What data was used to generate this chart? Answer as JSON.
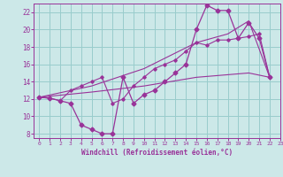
{
  "xlabel": "Windchill (Refroidissement éolien,°C)",
  "xlim": [
    -0.5,
    23
  ],
  "ylim": [
    7.5,
    23
  ],
  "xticks": [
    0,
    1,
    2,
    3,
    4,
    5,
    6,
    7,
    8,
    9,
    10,
    11,
    12,
    13,
    14,
    15,
    16,
    17,
    18,
    19,
    20,
    21,
    22,
    23
  ],
  "yticks": [
    8,
    10,
    12,
    14,
    16,
    18,
    20,
    22
  ],
  "bg_color": "#cce8e8",
  "line_color": "#993399",
  "grid_color": "#99cccc",
  "main_line": [
    [
      0,
      12.2
    ],
    [
      1,
      12.1
    ],
    [
      2,
      11.8
    ],
    [
      3,
      11.5
    ],
    [
      4,
      9.0
    ],
    [
      5,
      8.5
    ],
    [
      6,
      8.0
    ],
    [
      7,
      8.0
    ],
    [
      8,
      14.5
    ],
    [
      9,
      11.5
    ],
    [
      10,
      12.5
    ],
    [
      11,
      13.0
    ],
    [
      12,
      14.0
    ],
    [
      13,
      15.0
    ],
    [
      14,
      16.0
    ],
    [
      15,
      20.0
    ],
    [
      16,
      22.8
    ],
    [
      17,
      22.2
    ],
    [
      18,
      22.2
    ],
    [
      19,
      19.0
    ],
    [
      20,
      20.8
    ],
    [
      21,
      19.0
    ],
    [
      22,
      14.5
    ]
  ],
  "smooth_line1": [
    [
      0,
      12.2
    ],
    [
      1,
      12.1
    ],
    [
      2,
      11.8
    ],
    [
      3,
      13.0
    ],
    [
      4,
      13.5
    ],
    [
      5,
      14.0
    ],
    [
      6,
      14.5
    ],
    [
      7,
      11.5
    ],
    [
      8,
      12.0
    ],
    [
      9,
      13.5
    ],
    [
      10,
      14.5
    ],
    [
      11,
      15.5
    ],
    [
      12,
      16.0
    ],
    [
      13,
      16.5
    ],
    [
      14,
      17.5
    ],
    [
      15,
      18.5
    ],
    [
      16,
      18.2
    ],
    [
      17,
      18.8
    ],
    [
      18,
      18.8
    ],
    [
      19,
      19.0
    ],
    [
      20,
      19.2
    ],
    [
      21,
      19.5
    ],
    [
      22,
      14.5
    ]
  ],
  "trend_lower": [
    [
      0,
      12.2
    ],
    [
      5,
      12.8
    ],
    [
      10,
      13.5
    ],
    [
      15,
      14.5
    ],
    [
      18,
      14.8
    ],
    [
      20,
      15.0
    ],
    [
      22,
      14.5
    ]
  ],
  "trend_upper": [
    [
      0,
      12.2
    ],
    [
      5,
      13.5
    ],
    [
      10,
      15.5
    ],
    [
      15,
      18.5
    ],
    [
      18,
      19.5
    ],
    [
      20,
      21.0
    ],
    [
      22,
      14.5
    ]
  ]
}
